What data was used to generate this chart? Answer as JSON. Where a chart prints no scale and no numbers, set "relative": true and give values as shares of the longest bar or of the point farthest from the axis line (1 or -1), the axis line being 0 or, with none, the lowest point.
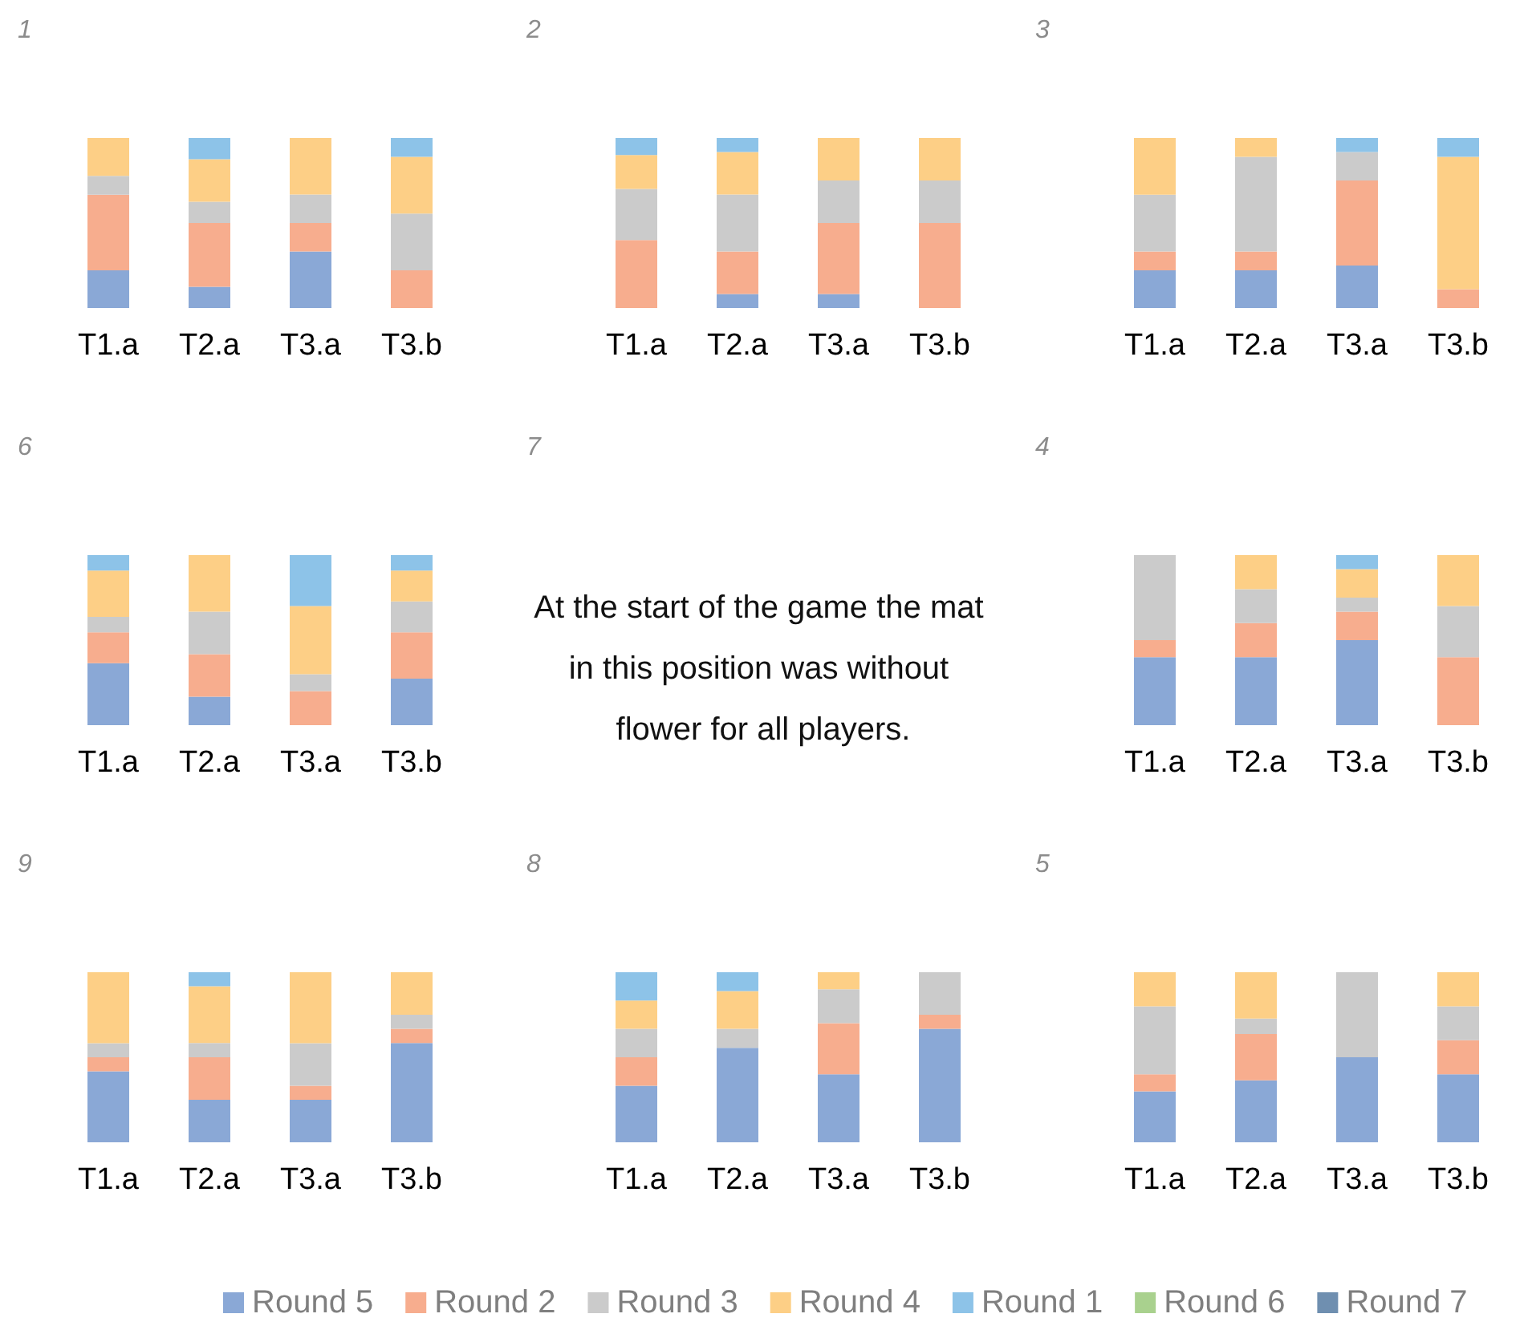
{
  "chart_data": [
    {
      "type": "bar",
      "title": "1",
      "categories": [
        "T1.a",
        "T2.a",
        "T3.a",
        "T3.b"
      ],
      "stacked": true,
      "relative": true,
      "series": [
        {
          "color": "#8aa8d6",
          "values": [
            0.222,
            0.125,
            0.333,
            null
          ]
        },
        {
          "color": "#f7ad8e",
          "values": [
            0.444,
            0.375,
            0.167,
            0.222
          ]
        },
        {
          "color": "#cbcbcb",
          "values": [
            0.111,
            0.125,
            0.167,
            0.333
          ]
        },
        {
          "color": "#fdcf86",
          "values": [
            0.223,
            0.25,
            0.333,
            0.334
          ]
        },
        {
          "color": "#8dc3e8",
          "values": [
            null,
            0.125,
            null,
            0.111
          ]
        }
      ]
    },
    {
      "type": "bar",
      "title": "2",
      "categories": [
        "T1.a",
        "T2.a",
        "T3.a",
        "T3.b"
      ],
      "stacked": true,
      "relative": true,
      "series": [
        {
          "color": "#8aa8d6",
          "values": [
            null,
            0.083,
            0.083,
            null
          ]
        },
        {
          "color": "#f7ad8e",
          "values": [
            0.4,
            0.25,
            0.417,
            0.5
          ]
        },
        {
          "color": "#cbcbcb",
          "values": [
            0.3,
            0.334,
            0.25,
            0.25
          ]
        },
        {
          "color": "#fdcf86",
          "values": [
            0.2,
            0.25,
            0.25,
            0.25
          ]
        },
        {
          "color": "#8dc3e8",
          "values": [
            0.1,
            0.083,
            null,
            null
          ]
        }
      ]
    },
    {
      "type": "bar",
      "title": "3",
      "categories": [
        "T1.a",
        "T2.a",
        "T3.a",
        "T3.b"
      ],
      "stacked": true,
      "relative": true,
      "series": [
        {
          "color": "#8aa8d6",
          "values": [
            0.222,
            0.222,
            0.25,
            null
          ]
        },
        {
          "color": "#f7ad8e",
          "values": [
            0.111,
            0.111,
            0.5,
            0.111
          ]
        },
        {
          "color": "#cbcbcb",
          "values": [
            0.333,
            0.556,
            0.167,
            null
          ]
        },
        {
          "color": "#fdcf86",
          "values": [
            0.334,
            0.111,
            null,
            0.778
          ]
        },
        {
          "color": "#8dc3e8",
          "values": [
            null,
            null,
            0.083,
            0.111
          ]
        }
      ]
    },
    {
      "type": "bar",
      "title": "6",
      "categories": [
        "T1.a",
        "T2.a",
        "T3.a",
        "T3.b"
      ],
      "stacked": true,
      "relative": true,
      "series": [
        {
          "color": "#8aa8d6",
          "values": [
            0.364,
            0.167,
            null,
            0.273
          ]
        },
        {
          "color": "#f7ad8e",
          "values": [
            0.182,
            0.25,
            0.2,
            0.273
          ]
        },
        {
          "color": "#cbcbcb",
          "values": [
            0.091,
            0.25,
            0.1,
            0.182
          ]
        },
        {
          "color": "#fdcf86",
          "values": [
            0.272,
            0.333,
            0.4,
            0.181
          ]
        },
        {
          "color": "#8dc3e8",
          "values": [
            0.091,
            null,
            0.3,
            0.091
          ]
        }
      ]
    },
    {
      "type": "other",
      "title": "7",
      "annotations": [
        "At the start of the game the mat in this position was without flower for all players."
      ]
    },
    {
      "type": "bar",
      "title": "4",
      "categories": [
        "T1.a",
        "T2.a",
        "T3.a",
        "T3.b"
      ],
      "stacked": true,
      "relative": true,
      "series": [
        {
          "color": "#8aa8d6",
          "values": [
            0.4,
            0.4,
            0.5,
            null
          ]
        },
        {
          "color": "#f7ad8e",
          "values": [
            0.1,
            0.2,
            0.167,
            0.4
          ]
        },
        {
          "color": "#cbcbcb",
          "values": [
            0.5,
            0.2,
            0.083,
            0.3
          ]
        },
        {
          "color": "#fdcf86",
          "values": [
            null,
            0.2,
            0.167,
            0.3
          ]
        },
        {
          "color": "#8dc3e8",
          "values": [
            null,
            null,
            0.083,
            null
          ]
        }
      ]
    },
    {
      "type": "bar",
      "title": "9",
      "categories": [
        "T1.a",
        "T2.a",
        "T3.a",
        "T3.b"
      ],
      "stacked": true,
      "relative": true,
      "series": [
        {
          "color": "#8aa8d6",
          "values": [
            0.417,
            0.25,
            0.25,
            0.584
          ]
        },
        {
          "color": "#f7ad8e",
          "values": [
            0.083,
            0.25,
            0.083,
            0.083
          ]
        },
        {
          "color": "#cbcbcb",
          "values": [
            0.083,
            0.084,
            0.25,
            0.083
          ]
        },
        {
          "color": "#fdcf86",
          "values": [
            0.417,
            0.333,
            0.417,
            0.25
          ]
        },
        {
          "color": "#8dc3e8",
          "values": [
            null,
            0.083,
            null,
            null
          ]
        }
      ]
    },
    {
      "type": "bar",
      "title": "8",
      "categories": [
        "T1.a",
        "T2.a",
        "T3.a",
        "T3.b"
      ],
      "stacked": true,
      "relative": true,
      "series": [
        {
          "color": "#8aa8d6",
          "values": [
            0.333,
            0.556,
            0.4,
            0.667
          ]
        },
        {
          "color": "#f7ad8e",
          "values": [
            0.167,
            null,
            0.3,
            0.083
          ]
        },
        {
          "color": "#cbcbcb",
          "values": [
            0.167,
            0.111,
            0.2,
            0.25
          ]
        },
        {
          "color": "#fdcf86",
          "values": [
            0.167,
            0.222,
            0.1,
            null
          ]
        },
        {
          "color": "#8dc3e8",
          "values": [
            0.166,
            0.111,
            null,
            null
          ]
        }
      ]
    },
    {
      "type": "bar",
      "title": "5",
      "categories": [
        "T1.a",
        "T2.a",
        "T3.a",
        "T3.b"
      ],
      "stacked": true,
      "relative": true,
      "legend": "bottom",
      "series": [
        {
          "name": "Round 5",
          "color": "#8aa8d6",
          "values": [
            0.3,
            0.364,
            0.5,
            0.4
          ]
        },
        {
          "name": "Round 2",
          "color": "#f7ad8e",
          "values": [
            0.1,
            0.273,
            null,
            0.2
          ]
        },
        {
          "name": "Round 3",
          "color": "#cbcbcb",
          "values": [
            0.4,
            0.091,
            0.5,
            0.2
          ]
        },
        {
          "name": "Round 4",
          "color": "#fdcf86",
          "values": [
            0.2,
            0.272,
            null,
            0.2
          ]
        },
        {
          "name": "Round 1",
          "color": "#8dc3e8",
          "values": [
            null,
            null,
            null,
            null
          ]
        },
        {
          "name": "Round 6",
          "color": "#a9d18e",
          "values": [
            null,
            null,
            null,
            null
          ]
        },
        {
          "name": "Round 7",
          "color": "#6f8fb0",
          "values": [
            null,
            null,
            null,
            null
          ]
        }
      ]
    }
  ]
}
